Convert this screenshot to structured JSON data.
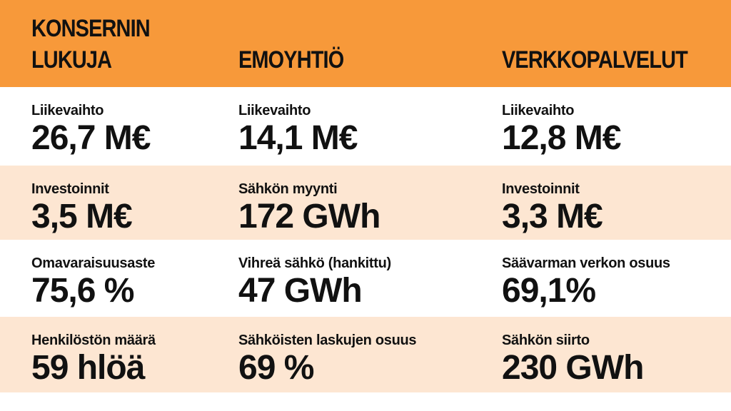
{
  "header": [
    "KONSERNIN LUKUJA",
    "EMOYHTIÖ",
    "VERKKOPALVELUT"
  ],
  "rows": [
    [
      {
        "label": "Liikevaihto",
        "value": "26,7 M€"
      },
      {
        "label": "Liikevaihto",
        "value": "14,1 M€"
      },
      {
        "label": "Liikevaihto",
        "value": "12,8 M€"
      }
    ],
    [
      {
        "label": "Investoinnit",
        "value": "3,5 M€"
      },
      {
        "label": "Sähkön myynti",
        "value": "172 GWh"
      },
      {
        "label": "Investoinnit",
        "value": "3,3 M€"
      }
    ],
    [
      {
        "label": "Omavaraisuusaste",
        "value": "75,6 %"
      },
      {
        "label": "Vihreä sähkö (hankittu)",
        "value": "47 GWh"
      },
      {
        "label": "Säävarman verkon osuus",
        "value": "69,1%"
      }
    ],
    [
      {
        "label": "Henkilöstön määrä",
        "value": "59 hlöä"
      },
      {
        "label": "Sähköisten laskujen osuus",
        "value": "69 %"
      },
      {
        "label": "Sähkön siirto",
        "value": "230 GWh"
      }
    ]
  ]
}
